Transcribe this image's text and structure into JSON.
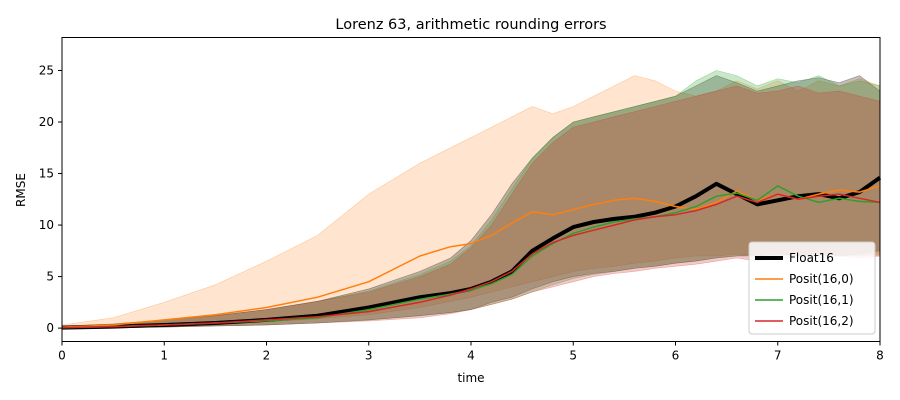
{
  "chart_data": {
    "type": "line",
    "title": "Lorenz 63, arithmetic rounding errors",
    "xlabel": "time",
    "ylabel": "RMSE",
    "xlim": [
      0,
      8
    ],
    "ylim": [
      -1.3,
      28.2
    ],
    "xticks": [
      0,
      1,
      2,
      3,
      4,
      5,
      6,
      7,
      8
    ],
    "yticks": [
      0,
      5,
      10,
      15,
      20,
      25
    ],
    "grid": false,
    "legend_position": "lower-right",
    "series": [
      {
        "name": "Float16",
        "color": "#000000",
        "linewidth": 4,
        "x": [
          0,
          0.5,
          1,
          1.5,
          2,
          2.5,
          3,
          3.5,
          3.8,
          4,
          4.2,
          4.4,
          4.6,
          4.8,
          5,
          5.2,
          5.4,
          5.6,
          5.8,
          6,
          6.2,
          6.4,
          6.6,
          6.8,
          7,
          7.2,
          7.4,
          7.6,
          7.8,
          8
        ],
        "y": [
          0.05,
          0.15,
          0.3,
          0.5,
          0.8,
          1.2,
          2.0,
          3.0,
          3.4,
          3.8,
          4.5,
          5.5,
          7.5,
          8.7,
          9.8,
          10.3,
          10.6,
          10.8,
          11.2,
          11.8,
          12.8,
          14.0,
          13.0,
          12.0,
          12.4,
          12.8,
          13.0,
          12.6,
          13.2,
          14.6
        ],
        "band_low": [
          0,
          0.05,
          0.1,
          0.2,
          0.3,
          0.5,
          0.8,
          1.2,
          1.5,
          1.8,
          2.5,
          3.0,
          3.8,
          4.5,
          5.0,
          5.3,
          5.5,
          5.8,
          6.0,
          6.3,
          6.5,
          6.8,
          7.0,
          7.0,
          7.2,
          7.0,
          7.3,
          7.0,
          7.2,
          7.5
        ],
        "band_high": [
          0.2,
          0.4,
          0.8,
          1.2,
          1.8,
          2.6,
          3.8,
          5.5,
          6.8,
          8.5,
          11.0,
          14.0,
          16.5,
          18.5,
          20.0,
          20.5,
          21.0,
          21.5,
          22.0,
          22.5,
          23.5,
          24.5,
          23.8,
          23.0,
          23.5,
          24.0,
          24.3,
          23.8,
          24.5,
          23.0
        ]
      },
      {
        "name": "Posit(16,0)",
        "color": "#ff7f0e",
        "linewidth": 1.5,
        "x": [
          0,
          0.5,
          1,
          1.5,
          2,
          2.5,
          3,
          3.5,
          3.8,
          4,
          4.2,
          4.4,
          4.6,
          4.8,
          5,
          5.2,
          5.4,
          5.6,
          5.8,
          6,
          6.2,
          6.4,
          6.6,
          6.8,
          7,
          7.2,
          7.4,
          7.6,
          7.8,
          8
        ],
        "y": [
          0.1,
          0.3,
          0.8,
          1.3,
          2.0,
          3.0,
          4.5,
          7.0,
          7.9,
          8.2,
          9.0,
          10.2,
          11.3,
          11.0,
          11.5,
          12.0,
          12.4,
          12.6,
          12.3,
          11.8,
          11.5,
          12.2,
          13.3,
          12.4,
          13.0,
          12.5,
          13.0,
          13.4,
          13.2,
          13.8
        ],
        "band_low": [
          0,
          0.05,
          0.2,
          0.4,
          0.6,
          0.9,
          1.3,
          2.0,
          2.6,
          3.0,
          3.5,
          4.0,
          4.5,
          5.0,
          5.5,
          5.8,
          6.0,
          6.3,
          6.5,
          6.8,
          7.0,
          7.0,
          7.2,
          7.0,
          7.2,
          7.0,
          7.3,
          7.0,
          7.2,
          7.0
        ],
        "band_high": [
          0.3,
          1.0,
          2.5,
          4.2,
          6.5,
          9.0,
          13.0,
          16.0,
          17.5,
          18.5,
          19.5,
          20.5,
          21.5,
          20.8,
          21.5,
          22.5,
          23.5,
          24.5,
          24.0,
          23.0,
          22.5,
          23.0,
          24.0,
          23.2,
          24.0,
          23.0,
          24.0,
          23.5,
          24.2,
          23.5
        ]
      },
      {
        "name": "Posit(16,1)",
        "color": "#2ca02c",
        "linewidth": 1.5,
        "x": [
          0,
          0.5,
          1,
          1.5,
          2,
          2.5,
          3,
          3.5,
          3.8,
          4,
          4.2,
          4.4,
          4.6,
          4.8,
          5,
          5.2,
          5.4,
          5.6,
          5.8,
          6,
          6.2,
          6.4,
          6.6,
          6.8,
          7,
          7.2,
          7.4,
          7.6,
          7.8,
          8
        ],
        "y": [
          0.05,
          0.15,
          0.3,
          0.5,
          0.7,
          1.0,
          1.8,
          2.8,
          3.3,
          3.7,
          4.3,
          5.2,
          7.0,
          8.2,
          9.2,
          9.8,
          10.3,
          10.6,
          10.8,
          11.2,
          11.8,
          12.8,
          13.1,
          12.4,
          13.8,
          12.8,
          12.2,
          12.6,
          12.3,
          12.2
        ],
        "band_low": [
          0,
          0.05,
          0.1,
          0.2,
          0.3,
          0.5,
          0.8,
          1.2,
          1.5,
          1.8,
          2.3,
          2.8,
          3.5,
          4.2,
          4.8,
          5.2,
          5.5,
          5.8,
          6.0,
          6.3,
          6.5,
          6.8,
          7.0,
          7.2,
          7.0,
          7.3,
          7.0,
          7.2,
          7.0,
          7.2
        ],
        "band_high": [
          0.2,
          0.4,
          0.8,
          1.2,
          1.8,
          2.6,
          3.6,
          5.2,
          6.5,
          8.0,
          10.5,
          13.5,
          16.5,
          18.5,
          20.0,
          20.5,
          21.0,
          21.5,
          22.0,
          22.5,
          24.0,
          25.0,
          24.5,
          23.5,
          24.2,
          23.8,
          24.5,
          23.5,
          24.0,
          23.5
        ]
      },
      {
        "name": "Posit(16,2)",
        "color": "#d62728",
        "linewidth": 1.5,
        "x": [
          0,
          0.5,
          1,
          1.5,
          2,
          2.5,
          3,
          3.5,
          3.8,
          4,
          4.2,
          4.4,
          4.6,
          4.8,
          5,
          5.2,
          5.4,
          5.6,
          5.8,
          6,
          6.2,
          6.4,
          6.6,
          6.8,
          7,
          7.2,
          7.4,
          7.6,
          7.8,
          8
        ],
        "y": [
          0.05,
          0.15,
          0.3,
          0.5,
          0.8,
          1.1,
          1.6,
          2.5,
          3.2,
          3.8,
          4.5,
          5.5,
          7.2,
          8.3,
          9.0,
          9.5,
          10.0,
          10.5,
          10.8,
          11.0,
          11.4,
          12.0,
          12.8,
          12.2,
          13.0,
          12.5,
          12.8,
          13.0,
          12.6,
          12.2
        ],
        "band_low": [
          0,
          0.05,
          0.1,
          0.2,
          0.3,
          0.5,
          0.7,
          1.0,
          1.4,
          1.8,
          2.3,
          2.8,
          3.5,
          4.0,
          4.5,
          5.0,
          5.3,
          5.5,
          5.8,
          6.0,
          6.2,
          6.5,
          6.8,
          6.5,
          6.8,
          7.0,
          6.8,
          7.0,
          6.8,
          7.0
        ],
        "band_high": [
          0.2,
          0.4,
          0.8,
          1.2,
          1.8,
          2.6,
          3.5,
          5.0,
          6.2,
          7.8,
          10.0,
          13.0,
          16.0,
          18.0,
          19.5,
          20.0,
          20.5,
          21.0,
          21.5,
          22.0,
          22.5,
          23.0,
          23.5,
          22.8,
          23.0,
          23.5,
          22.8,
          23.0,
          22.5,
          22.0
        ]
      }
    ]
  }
}
